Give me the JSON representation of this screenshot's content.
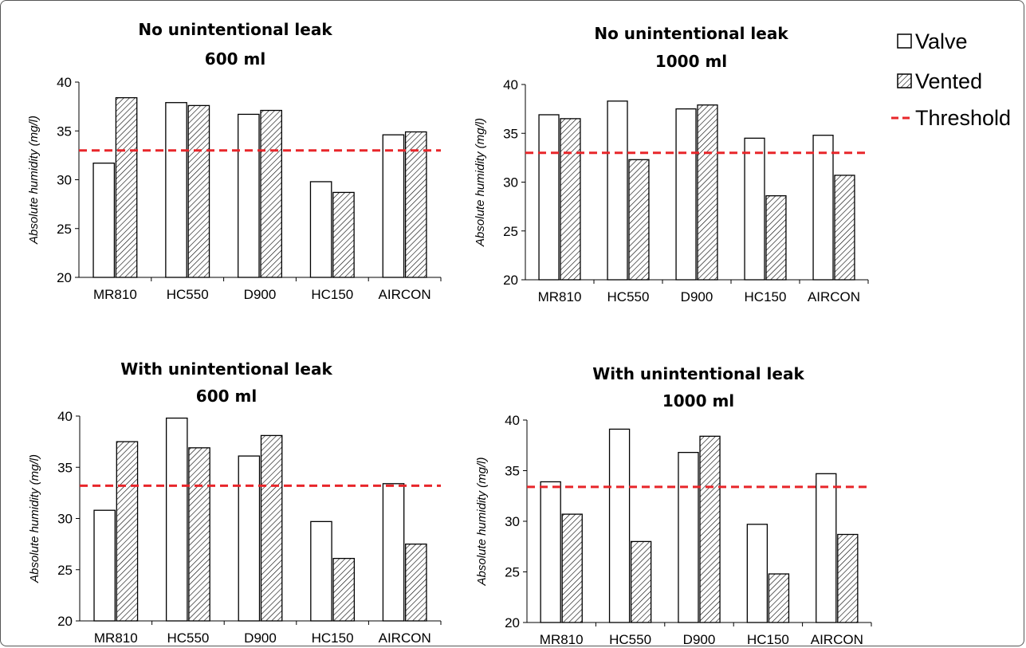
{
  "legend": {
    "valve": "Valve",
    "vented": "Vented",
    "threshold": "Threshold"
  },
  "colors": {
    "threshold": "#e8262a",
    "valve_fill": "#ffffff",
    "vented_pattern": "diagonal-hatch",
    "bar_outline": "#000000"
  },
  "chart_data": [
    {
      "type": "bar",
      "title": [
        "No unintentional leak",
        "600 ml"
      ],
      "ylabel": "Absolute humidity (mg/l)",
      "ylim": [
        20,
        40
      ],
      "yticks": [
        20,
        25,
        30,
        35,
        40
      ],
      "categories": [
        "MR810",
        "HC550",
        "D900",
        "HC150",
        "AIRCON"
      ],
      "series": [
        {
          "name": "Valve",
          "values": [
            31.7,
            37.9,
            36.7,
            29.8,
            34.6
          ]
        },
        {
          "name": "Vented",
          "values": [
            38.4,
            37.6,
            37.1,
            28.7,
            34.9
          ]
        }
      ],
      "threshold": 33.0
    },
    {
      "type": "bar",
      "title": [
        "No unintentional leak",
        "1000 ml"
      ],
      "ylabel": "Absolute humidity (mg/l)",
      "ylim": [
        20,
        40
      ],
      "yticks": [
        20,
        25,
        30,
        35,
        40
      ],
      "categories": [
        "MR810",
        "HC550",
        "D900",
        "HC150",
        "AIRCON"
      ],
      "series": [
        {
          "name": "Valve",
          "values": [
            36.9,
            38.3,
            37.5,
            34.5,
            34.8
          ]
        },
        {
          "name": "Vented",
          "values": [
            36.5,
            32.3,
            37.9,
            28.6,
            30.7
          ]
        }
      ],
      "threshold": 33.0
    },
    {
      "type": "bar",
      "title": [
        "With unintentional leak",
        "600 ml"
      ],
      "ylabel": "Absolute humidity (mg/l)",
      "ylim": [
        20,
        40
      ],
      "yticks": [
        20,
        25,
        30,
        35,
        40
      ],
      "categories": [
        "MR810",
        "HC550",
        "D900",
        "HC150",
        "AIRCON"
      ],
      "series": [
        {
          "name": "Valve",
          "values": [
            30.8,
            39.8,
            36.1,
            29.7,
            33.4
          ]
        },
        {
          "name": "Vented",
          "values": [
            37.5,
            36.9,
            38.1,
            26.1,
            27.5
          ]
        }
      ],
      "threshold": 33.2
    },
    {
      "type": "bar",
      "title": [
        "With unintentional leak",
        "1000 ml"
      ],
      "ylabel": "Absolute humidity (mg/l)",
      "ylim": [
        20,
        40
      ],
      "yticks": [
        20,
        25,
        30,
        35,
        40
      ],
      "categories": [
        "MR810",
        "HC550",
        "D900",
        "HC150",
        "AIRCON"
      ],
      "series": [
        {
          "name": "Valve",
          "values": [
            33.9,
            39.1,
            36.8,
            29.7,
            34.7
          ]
        },
        {
          "name": "Vented",
          "values": [
            30.7,
            28.0,
            38.4,
            24.8,
            28.7
          ]
        }
      ],
      "threshold": 33.4
    }
  ]
}
